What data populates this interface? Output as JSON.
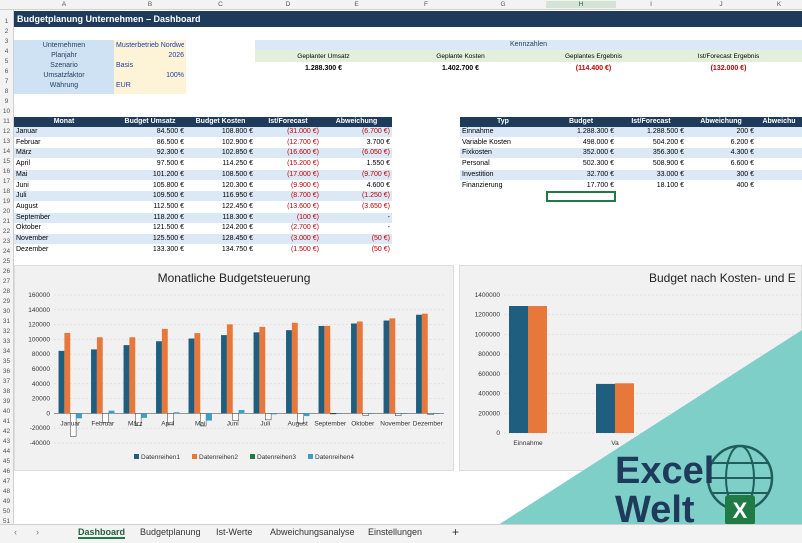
{
  "columns": [
    "A",
    "B",
    "C",
    "D",
    "E",
    "F",
    "G",
    "H",
    "I",
    "J",
    "K"
  ],
  "rows": [
    "1",
    "2",
    "3",
    "4",
    "5",
    "6",
    "7",
    "8",
    "9",
    "10",
    "11",
    "12",
    "13",
    "14",
    "15",
    "16",
    "17",
    "18",
    "19",
    "20",
    "21",
    "22",
    "23",
    "24",
    "25",
    "26",
    "27",
    "28",
    "29",
    "30",
    "31",
    "32",
    "33",
    "34",
    "35",
    "36",
    "37",
    "38",
    "39",
    "40",
    "41",
    "42",
    "43",
    "44",
    "45",
    "46",
    "47",
    "48",
    "49",
    "50",
    "51"
  ],
  "title": "Budgetplanung Unternehmen – Dashboard",
  "settings": [
    {
      "label": "Unternehmen",
      "value": "Musterbetrieb Nordwerk GmbH",
      "align": "left"
    },
    {
      "label": "Planjahr",
      "value": "2026",
      "align": "right"
    },
    {
      "label": "Szenario",
      "value": "Basis",
      "align": "left"
    },
    {
      "label": "Umsatzfaktor",
      "value": "100%",
      "align": "right"
    },
    {
      "label": "Währung",
      "value": "EUR",
      "align": "left"
    }
  ],
  "kennzahlen": {
    "title": "Kennzahlen",
    "items": [
      {
        "label": "Geplanter Umsatz",
        "value": "1.288.300 €",
        "neg": false
      },
      {
        "label": "Geplante Kosten",
        "value": "1.402.700 €",
        "neg": false
      },
      {
        "label": "Geplantes Ergebnis",
        "value": "(114.400 €)",
        "neg": true
      },
      {
        "label": "Ist/Forecast Ergebnis",
        "value": "(132.000 €)",
        "neg": true
      }
    ]
  },
  "monthTable": {
    "headers": [
      "Monat",
      "Budget Umsatz",
      "Budget Kosten",
      "Ist/Forecast Ergebnis",
      "Abweichung Ergebnis"
    ],
    "rows": [
      [
        "Januar",
        "84.500 €",
        "108.800 €",
        "(31.000 €)",
        "(6.700 €)"
      ],
      [
        "Februar",
        "86.500 €",
        "102.900 €",
        "(12.700 €)",
        "3.700 €"
      ],
      [
        "März",
        "92.300 €",
        "102.850 €",
        "(16.600 €)",
        "(6.050 €)"
      ],
      [
        "April",
        "97.500 €",
        "114.250 €",
        "(15.200 €)",
        "1.550 €"
      ],
      [
        "Mai",
        "101.200 €",
        "108.500 €",
        "(17.000 €)",
        "(9.700 €)"
      ],
      [
        "Juni",
        "105.800 €",
        "120.300 €",
        "(9.900 €)",
        "4.600 €"
      ],
      [
        "Juli",
        "109.500 €",
        "116.950 €",
        "(8.700 €)",
        "(1.250 €)"
      ],
      [
        "August",
        "112.500 €",
        "122.450 €",
        "(13.600 €)",
        "(3.650 €)"
      ],
      [
        "September",
        "118.200 €",
        "118.300 €",
        "(100 €)",
        "-"
      ],
      [
        "Oktober",
        "121.500 €",
        "124.200 €",
        "(2.700 €)",
        "-"
      ],
      [
        "November",
        "125.500 €",
        "128.450 €",
        "(3.000 €)",
        "(50 €)"
      ],
      [
        "Dezember",
        "133.300 €",
        "134.750 €",
        "(1.500 €)",
        "(50 €)"
      ]
    ]
  },
  "typTable": {
    "headers": [
      "Typ",
      "Budget",
      "Ist/Forecast",
      "Abweichung",
      "Abweichu"
    ],
    "rows": [
      [
        "Einnahme",
        "1.288.300 €",
        "1.288.500 €",
        "200 €"
      ],
      [
        "Variable Kosten",
        "498.000 €",
        "504.200 €",
        "6.200 €"
      ],
      [
        "Fixkosten",
        "352.000 €",
        "356.300 €",
        "4.300 €"
      ],
      [
        "Personal",
        "502.300 €",
        "508.900 €",
        "6.600 €"
      ],
      [
        "Investition",
        "32.700 €",
        "33.000 €",
        "300 €"
      ],
      [
        "Finanzierung",
        "17.700 €",
        "18.100 €",
        "400 €"
      ]
    ]
  },
  "chart_data": [
    {
      "type": "bar",
      "title": "Monatliche Budgetsteuerung",
      "categories": [
        "Januar",
        "Februar",
        "März",
        "April",
        "Mai",
        "Juni",
        "Juli",
        "August",
        "September",
        "Oktober",
        "November",
        "Dezember"
      ],
      "ylim": [
        -40000,
        160000
      ],
      "yticks": [
        "160000",
        "140000",
        "120000",
        "100000",
        "80000",
        "60000",
        "40000",
        "20000",
        "0",
        "-20000",
        "-40000"
      ],
      "series": [
        {
          "name": "Datenreihen1",
          "color": "#1f5e7e",
          "values": [
            84500,
            86500,
            92300,
            97500,
            101200,
            105800,
            109500,
            112500,
            118200,
            121500,
            125500,
            133300
          ]
        },
        {
          "name": "Datenreihen2",
          "color": "#e8783a",
          "values": [
            108800,
            102900,
            102850,
            114250,
            108500,
            120300,
            116950,
            122450,
            118300,
            124200,
            128450,
            134750
          ]
        },
        {
          "name": "Datenreihen3",
          "color": "#ffffff",
          "values": [
            -31000,
            -12700,
            -16600,
            -15200,
            -17000,
            -9900,
            -8700,
            -13600,
            -100,
            -2700,
            -3000,
            -1500
          ]
        },
        {
          "name": "Datenreihen4",
          "color": "#3aa0c8",
          "values": [
            -6700,
            3700,
            -6050,
            1550,
            -9700,
            4600,
            -1250,
            -3650,
            0,
            0,
            -50,
            -50
          ]
        }
      ],
      "legend": "bottom"
    },
    {
      "type": "bar",
      "title": "Budget nach Kosten- und E",
      "categories": [
        "Einnahme",
        "Va"
      ],
      "ylim": [
        0,
        1400000
      ],
      "yticks": [
        "1400000",
        "1200000",
        "1000000",
        "800000",
        "600000",
        "400000",
        "200000",
        "0"
      ],
      "series": [
        {
          "color": "#1f5e7e",
          "values": [
            1288300,
            498000
          ]
        },
        {
          "color": "#e8783a",
          "values": [
            1288500,
            504200
          ]
        }
      ]
    }
  ],
  "tabs": [
    "Dashboard",
    "Budgetplanung",
    "Ist-Werte",
    "Abweichungsanalyse",
    "Einstellungen"
  ],
  "brand": {
    "line1": "Excel",
    "line2": "Welt",
    "bg": "#7fcfc9",
    "text": "#1f3b5c"
  }
}
